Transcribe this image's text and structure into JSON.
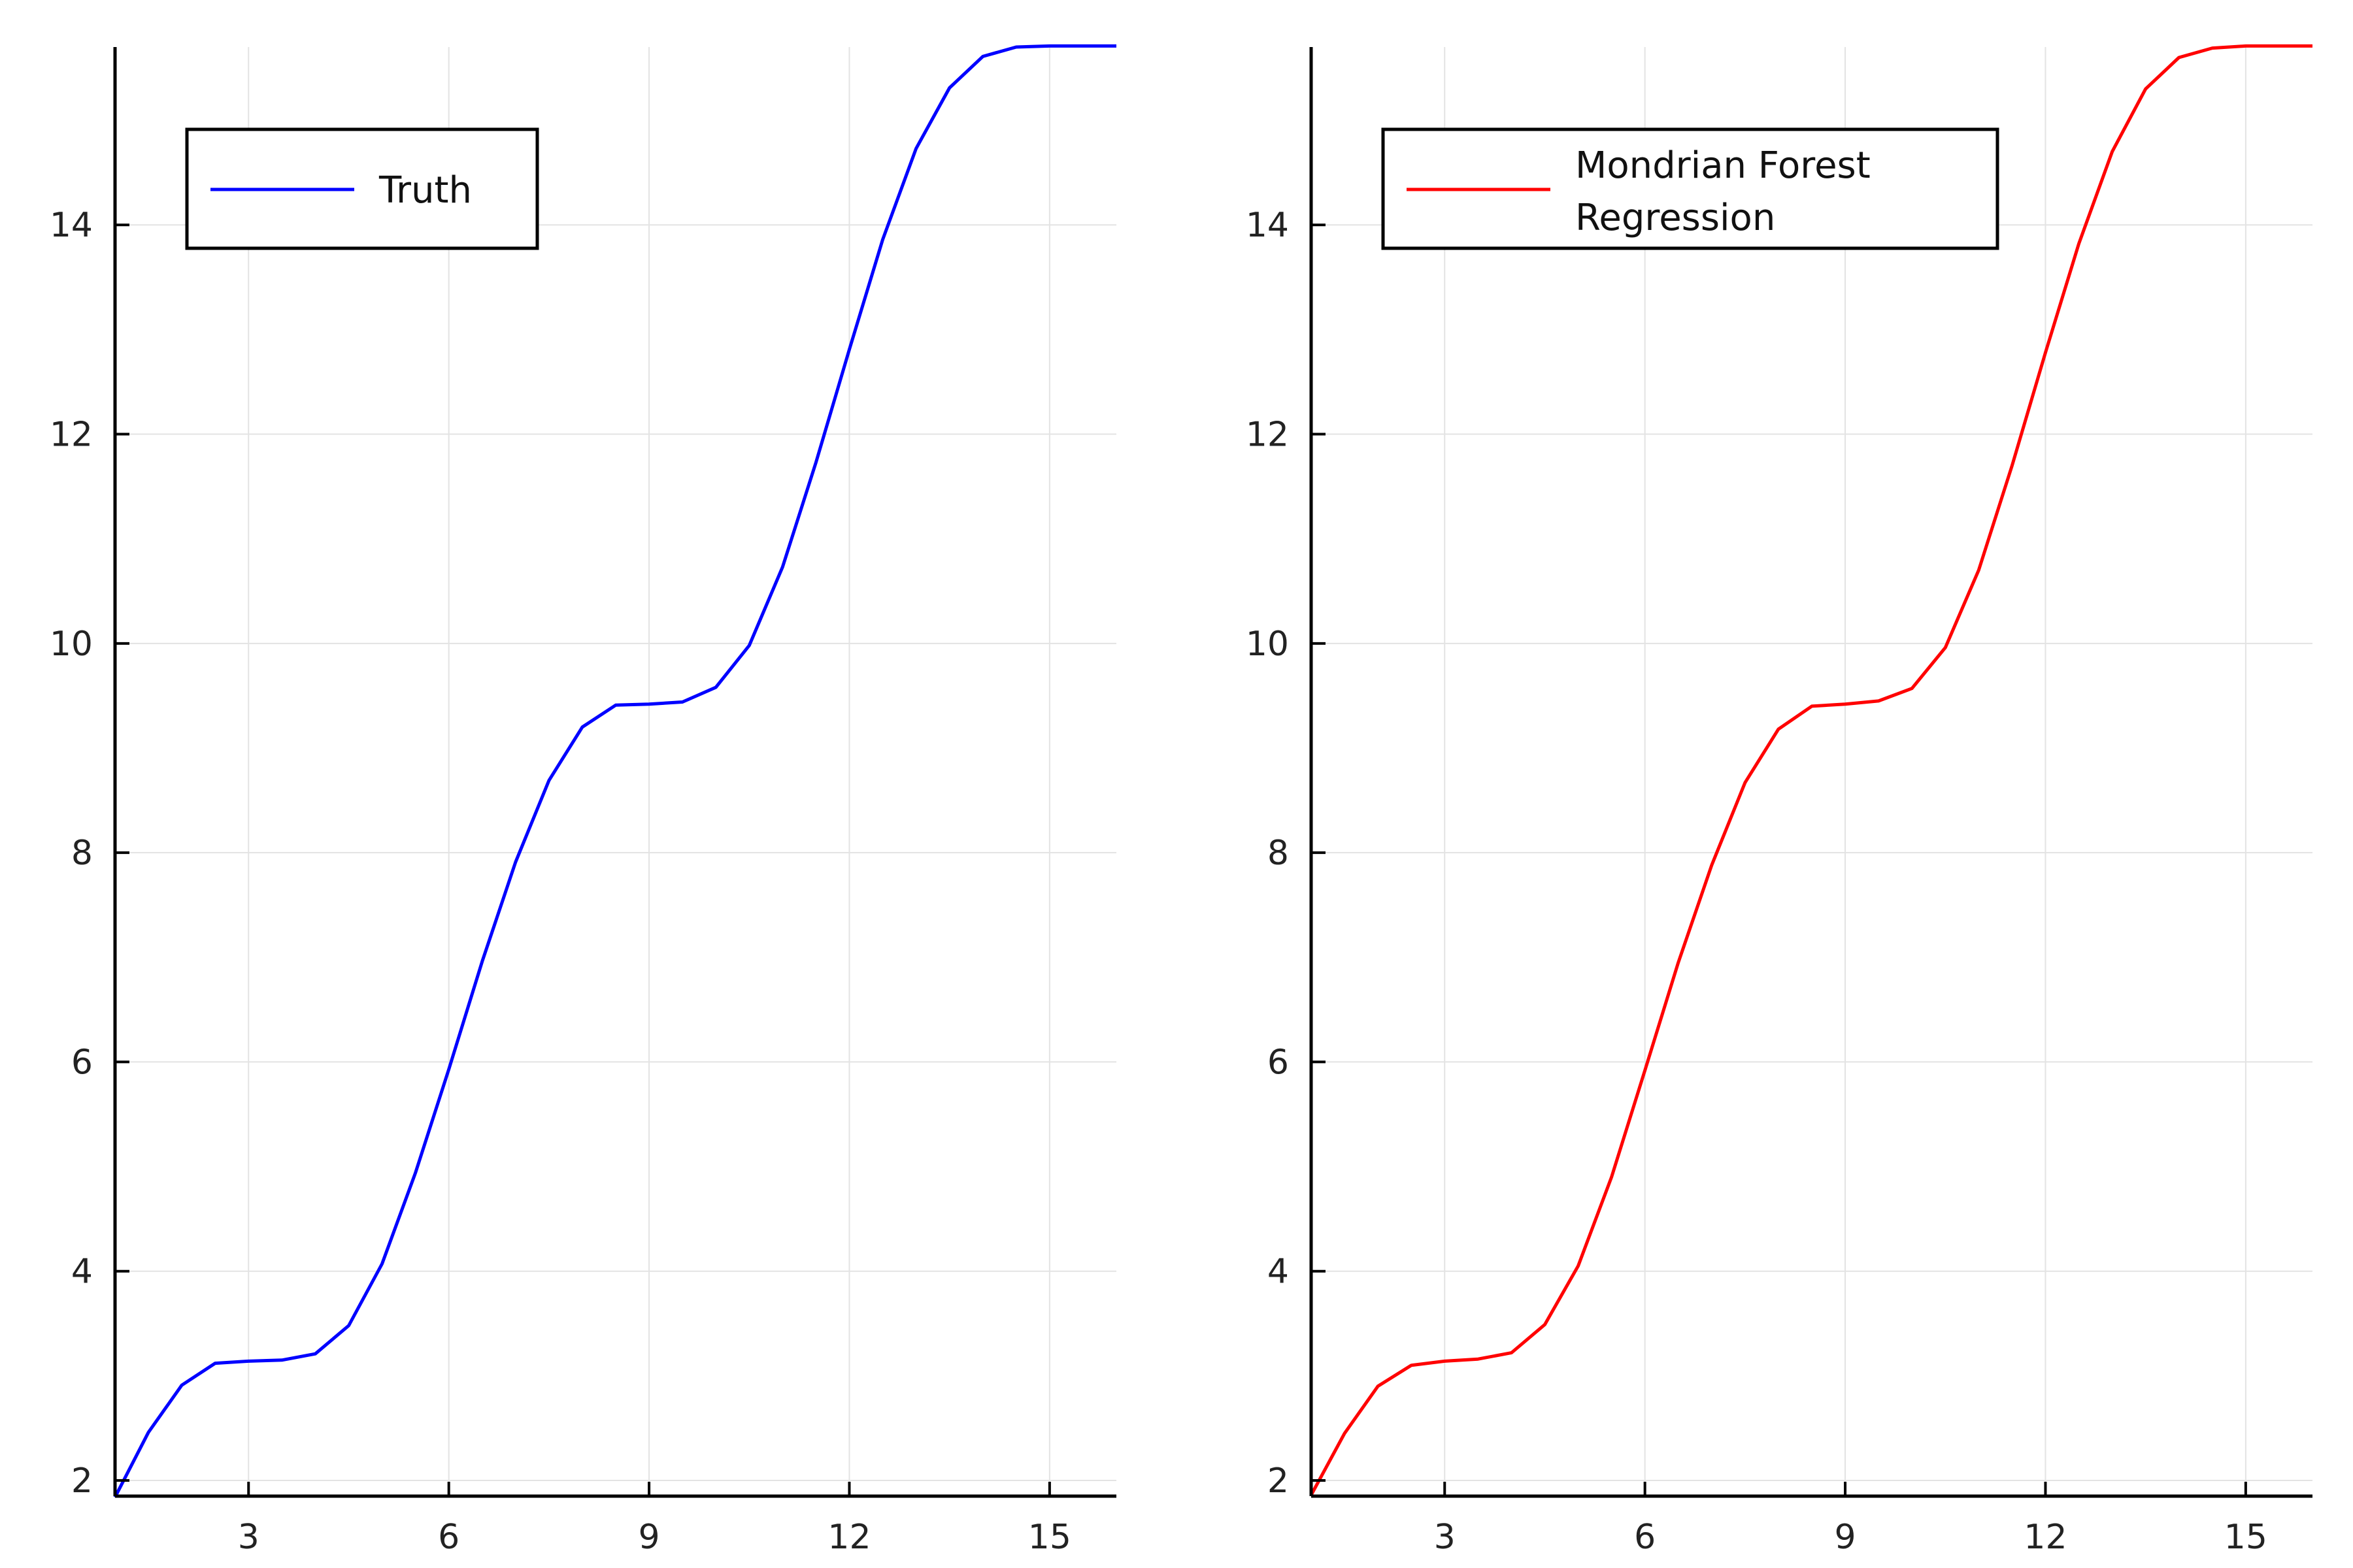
{
  "chart_data": [
    {
      "type": "line",
      "title": "",
      "xlabel": "",
      "ylabel": "",
      "xlim": [
        1,
        16
      ],
      "ylim": [
        1.85,
        15.7
      ],
      "xticks": [
        3,
        6,
        9,
        12,
        15
      ],
      "yticks": [
        2,
        4,
        6,
        8,
        10,
        12,
        14
      ],
      "xtick_labels": [
        "3",
        "6",
        "9",
        "12",
        "15"
      ],
      "ytick_labels": [
        "2",
        "4",
        "6",
        "8",
        "10",
        "12",
        "14"
      ],
      "grid": true,
      "legend_position": "top-left",
      "series": [
        {
          "name": "Truth",
          "color": "#0000ff",
          "x": [
            1.0,
            1.5,
            2.0,
            2.5,
            3.0,
            3.5,
            4.0,
            4.5,
            5.0,
            5.5,
            6.0,
            6.5,
            7.0,
            7.5,
            8.0,
            8.5,
            9.0,
            9.5,
            10.0,
            10.5,
            11.0,
            11.5,
            12.0,
            12.5,
            13.0,
            13.5,
            14.0,
            14.5,
            15.0,
            15.5,
            16.0
          ],
          "values": [
            1.84,
            2.46,
            2.91,
            3.12,
            3.14,
            3.15,
            3.21,
            3.48,
            4.07,
            4.94,
            5.93,
            6.96,
            7.91,
            8.69,
            9.2,
            9.41,
            9.42,
            9.44,
            9.58,
            9.98,
            10.73,
            11.73,
            12.81,
            13.86,
            14.73,
            15.31,
            15.61,
            15.7,
            15.71,
            15.71,
            15.71
          ]
        }
      ]
    },
    {
      "type": "line",
      "title": "",
      "xlabel": "",
      "ylabel": "",
      "xlim": [
        1,
        16
      ],
      "ylim": [
        1.85,
        15.7
      ],
      "xticks": [
        3,
        6,
        9,
        12,
        15
      ],
      "yticks": [
        2,
        4,
        6,
        8,
        10,
        12,
        14
      ],
      "xtick_labels": [
        "3",
        "6",
        "9",
        "12",
        "15"
      ],
      "ytick_labels": [
        "2",
        "4",
        "6",
        "8",
        "10",
        "12",
        "14"
      ],
      "grid": true,
      "legend_position": "top-left",
      "series": [
        {
          "name": "Mondrian Forest Regression",
          "color": "#ff0000",
          "x": [
            1.0,
            1.5,
            2.0,
            2.5,
            3.0,
            3.5,
            4.0,
            4.5,
            5.0,
            5.5,
            6.0,
            6.5,
            7.0,
            7.5,
            8.0,
            8.5,
            9.0,
            9.5,
            10.0,
            10.5,
            11.0,
            11.5,
            12.0,
            12.5,
            13.0,
            13.5,
            14.0,
            14.5,
            15.0,
            15.5,
            16.0
          ],
          "values": [
            1.86,
            2.45,
            2.9,
            3.1,
            3.14,
            3.16,
            3.22,
            3.49,
            4.05,
            4.9,
            5.92,
            6.95,
            7.88,
            8.67,
            9.18,
            9.4,
            9.42,
            9.45,
            9.57,
            9.96,
            10.7,
            11.7,
            12.78,
            13.82,
            14.7,
            15.3,
            15.6,
            15.69,
            15.71,
            15.71,
            15.71
          ]
        }
      ]
    }
  ]
}
